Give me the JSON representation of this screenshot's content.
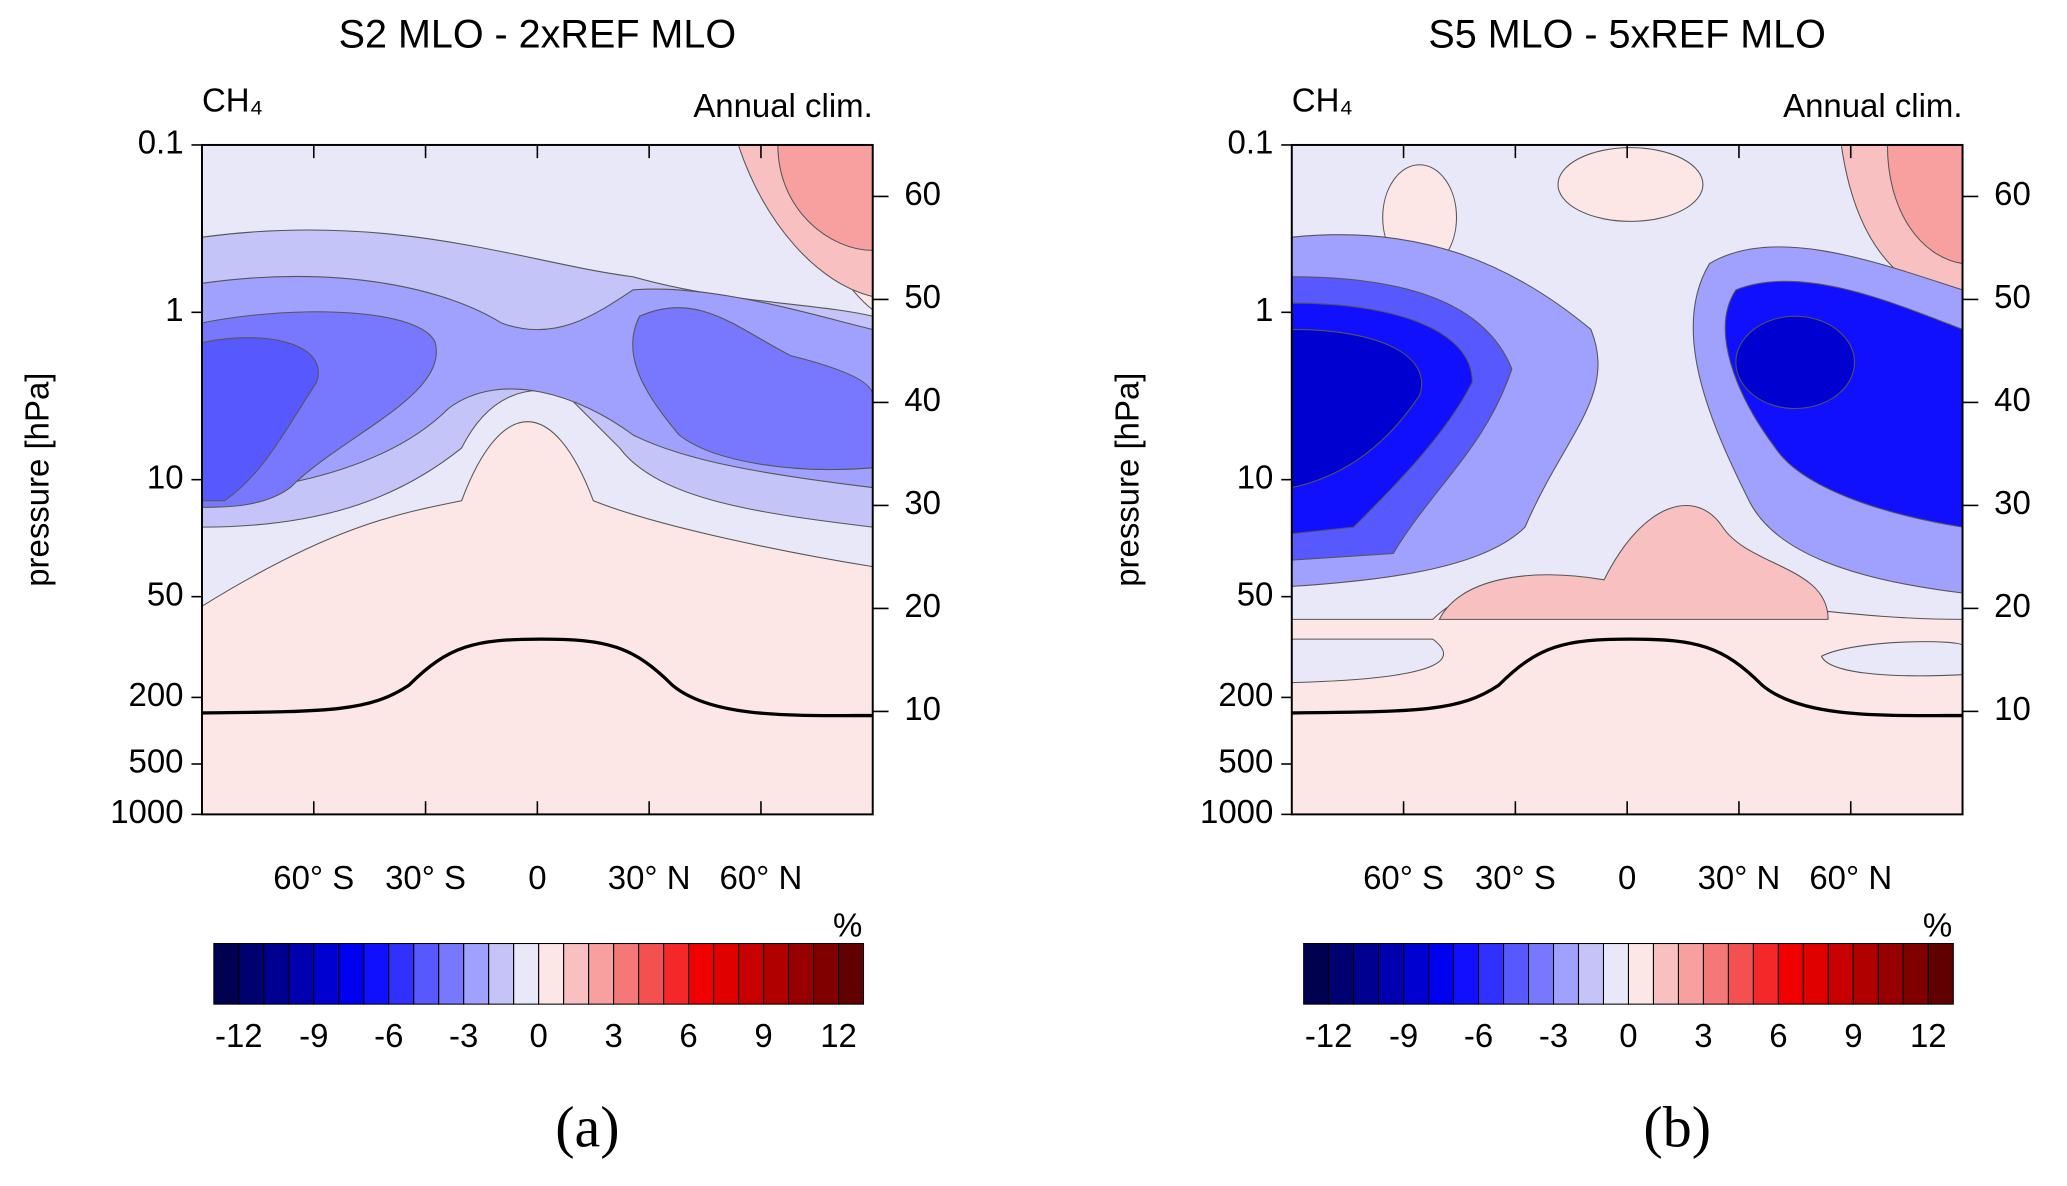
{
  "chart_data": [
    {
      "type": "contour",
      "title": "S2 MLO - 2xREF MLO",
      "species": "CH₄",
      "period": "Annual clim.",
      "ylabel": "pressure [hPa]",
      "panel": "(a)",
      "xlim": [
        -90,
        90
      ],
      "xticks": [
        {
          "value": -60,
          "label": "60° S"
        },
        {
          "value": -30,
          "label": "30° S"
        },
        0,
        {
          "value": 30,
          "label": "30° N"
        },
        {
          "value": 60,
          "label": "60° N"
        }
      ],
      "ylim": [
        1000,
        0.1
      ],
      "yscale": "log",
      "yticks": [
        0.1,
        1,
        10,
        50,
        200,
        500,
        1000
      ],
      "y2lim": [
        0,
        65
      ],
      "y2ticks": [
        10,
        20,
        30,
        40,
        50,
        60
      ],
      "colorbar": {
        "unit": "%",
        "levels": [
          -13,
          -12,
          -11,
          -10,
          -9,
          -8,
          -7,
          -6,
          -5,
          -4,
          -3,
          -2,
          -1,
          0,
          1,
          2,
          3,
          4,
          5,
          6,
          7,
          8,
          9,
          10,
          11,
          12,
          13
        ],
        "colors": [
          "#000050",
          "#000070",
          "#000090",
          "#0000b0",
          "#0000d0",
          "#0000f0",
          "#1010ff",
          "#3030ff",
          "#5858ff",
          "#7878ff",
          "#a0a0ff",
          "#c4c4f8",
          "#e8e8f8",
          "#fde6e6",
          "#f8c0c0",
          "#f8a0a0",
          "#f47878",
          "#f45050",
          "#f42828",
          "#f00000",
          "#e00000",
          "#c80000",
          "#b00000",
          "#980000",
          "#800000",
          "#600000"
        ],
        "ticks": [
          -12,
          -9,
          -6,
          -3,
          0,
          3,
          6,
          9,
          12
        ]
      }
    },
    {
      "type": "contour",
      "title": "S5 MLO - 5xREF MLO",
      "species": "CH₄",
      "period": "Annual clim.",
      "ylabel": "pressure [hPa]",
      "panel": "(b)",
      "xlim": [
        -90,
        90
      ],
      "xticks": [
        {
          "value": -60,
          "label": "60° S"
        },
        {
          "value": -30,
          "label": "30° S"
        },
        0,
        {
          "value": 30,
          "label": "30° N"
        },
        {
          "value": 60,
          "label": "60° N"
        }
      ],
      "ylim": [
        1000,
        0.1
      ],
      "yscale": "log",
      "yticks": [
        0.1,
        1,
        10,
        50,
        200,
        500,
        1000
      ],
      "y2lim": [
        0,
        65
      ],
      "y2ticks": [
        10,
        20,
        30,
        40,
        50,
        60
      ],
      "colorbar": {
        "unit": "%",
        "levels": [
          -13,
          -12,
          -11,
          -10,
          -9,
          -8,
          -7,
          -6,
          -5,
          -4,
          -3,
          -2,
          -1,
          0,
          1,
          2,
          3,
          4,
          5,
          6,
          7,
          8,
          9,
          10,
          11,
          12,
          13
        ],
        "colors": [
          "#000050",
          "#000070",
          "#000090",
          "#0000b0",
          "#0000d0",
          "#0000f0",
          "#1010ff",
          "#3030ff",
          "#5858ff",
          "#7878ff",
          "#a0a0ff",
          "#c4c4f8",
          "#e8e8f8",
          "#fde6e6",
          "#f8c0c0",
          "#f8a0a0",
          "#f47878",
          "#f45050",
          "#f42828",
          "#f00000",
          "#e00000",
          "#c80000",
          "#b00000",
          "#980000",
          "#800000",
          "#600000"
        ],
        "ticks": [
          -12,
          -9,
          -6,
          -3,
          0,
          3,
          6,
          9,
          12
        ]
      }
    }
  ]
}
